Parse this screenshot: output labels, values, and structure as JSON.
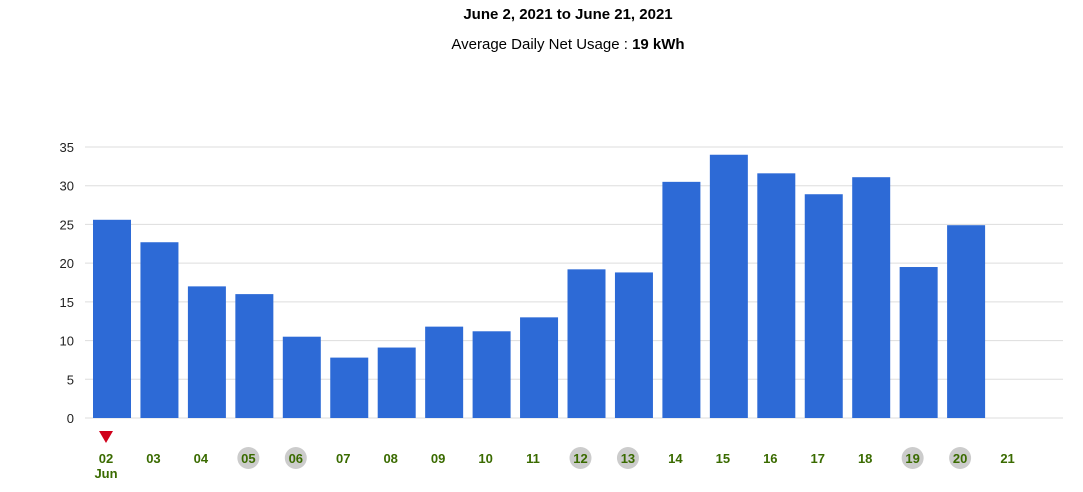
{
  "header": {
    "title": "June 2, 2021 to June 21, 2021",
    "subtitle_label": "Average Daily Net Usage : ",
    "subtitle_value": "19 kWh"
  },
  "colors": {
    "bar": "#2d6ad6",
    "grid": "#dddddd",
    "tick_text": "#3a6b00",
    "weekend_circle": "#cccccc",
    "marker": "#d0021b"
  },
  "chart_data": {
    "type": "bar",
    "title": "June 2, 2021 to June 21, 2021",
    "categories": [
      "02",
      "03",
      "04",
      "05",
      "06",
      "07",
      "08",
      "09",
      "10",
      "11",
      "12",
      "13",
      "14",
      "15",
      "16",
      "17",
      "18",
      "19",
      "20",
      "21"
    ],
    "values": [
      25.6,
      22.7,
      17.0,
      16.0,
      10.5,
      7.8,
      9.1,
      11.8,
      11.2,
      13.0,
      19.2,
      18.8,
      30.5,
      34.0,
      31.6,
      28.9,
      31.1,
      19.5,
      24.9,
      null
    ],
    "highlighted_categories": [
      "05",
      "06",
      "12",
      "13",
      "19",
      "20"
    ],
    "month_label": "Jun",
    "yticks": [
      0,
      5,
      10,
      15,
      20,
      25,
      30,
      35
    ],
    "ylim": [
      0,
      35
    ],
    "grid": true,
    "xlabel": "",
    "ylabel": ""
  }
}
